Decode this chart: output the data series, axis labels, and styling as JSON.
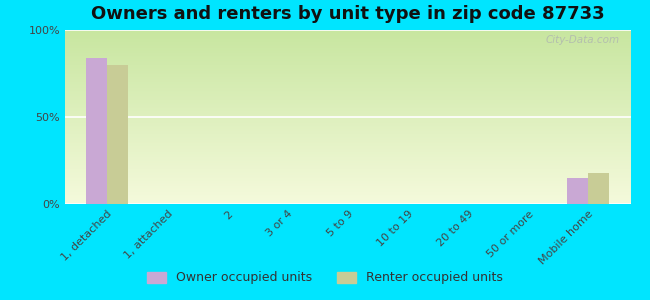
{
  "title": "Owners and renters by unit type in zip code 87733",
  "categories": [
    "1, detached",
    "1, attached",
    "2",
    "3 or 4",
    "5 to 9",
    "10 to 19",
    "20 to 49",
    "50 or more",
    "Mobile home"
  ],
  "owner_values": [
    84,
    0,
    0,
    0,
    0,
    0,
    0,
    0,
    15
  ],
  "renter_values": [
    80,
    0,
    0,
    0,
    0,
    0,
    0,
    0,
    18
  ],
  "owner_color": "#c9a8d4",
  "renter_color": "#c8cc96",
  "outer_bg": "#00e5ff",
  "ylabel_ticks": [
    0,
    50,
    100
  ],
  "ylabel_labels": [
    "0%",
    "50%",
    "100%"
  ],
  "bar_width": 0.35,
  "title_fontsize": 13,
  "tick_fontsize": 8,
  "legend_fontsize": 9,
  "watermark": "City-Data.com",
  "gradient_top": "#c8e6a0",
  "gradient_bottom": "#f5fadc"
}
